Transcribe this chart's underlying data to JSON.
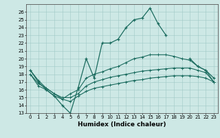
{
  "xlabel": "Humidex (Indice chaleur)",
  "xlim": [
    -0.5,
    23.5
  ],
  "ylim": [
    13,
    27
  ],
  "yticks": [
    13,
    14,
    15,
    16,
    17,
    18,
    19,
    20,
    21,
    22,
    23,
    24,
    25,
    26
  ],
  "xticks": [
    0,
    1,
    2,
    3,
    4,
    5,
    6,
    7,
    8,
    9,
    10,
    11,
    12,
    13,
    14,
    15,
    16,
    17,
    18,
    19,
    20,
    21,
    22,
    23
  ],
  "bg_color": "#cde8e5",
  "grid_color": "#a0c8c5",
  "line_color": "#1a6b5e",
  "line1_y": [
    18.5,
    17.0,
    16.0,
    15.2,
    14.0,
    13.0,
    16.3,
    20.0,
    17.5,
    22.0,
    22.0,
    22.5,
    24.0,
    25.0,
    25.2,
    26.5,
    24.5,
    23.0,
    null,
    null,
    20.0,
    19.0,
    18.5,
    17.5
  ],
  "line2_y": [
    18.5,
    17.2,
    16.2,
    15.5,
    14.8,
    15.5,
    16.0,
    17.5,
    18.0,
    18.3,
    18.7,
    19.0,
    19.5,
    20.0,
    20.2,
    20.5,
    20.5,
    20.5,
    20.3,
    20.0,
    19.8,
    19.0,
    18.5,
    17.0
  ],
  "line3_y": [
    18.0,
    16.8,
    16.2,
    15.5,
    15.0,
    15.0,
    15.5,
    16.5,
    17.0,
    17.3,
    17.6,
    17.8,
    18.0,
    18.2,
    18.4,
    18.5,
    18.6,
    18.7,
    18.8,
    18.8,
    18.8,
    18.5,
    18.2,
    17.0
  ],
  "line4_y": [
    18.0,
    16.5,
    16.0,
    15.2,
    14.8,
    14.5,
    15.2,
    15.8,
    16.2,
    16.4,
    16.6,
    16.8,
    17.0,
    17.2,
    17.3,
    17.5,
    17.6,
    17.7,
    17.8,
    17.8,
    17.8,
    17.7,
    17.5,
    17.0
  ]
}
